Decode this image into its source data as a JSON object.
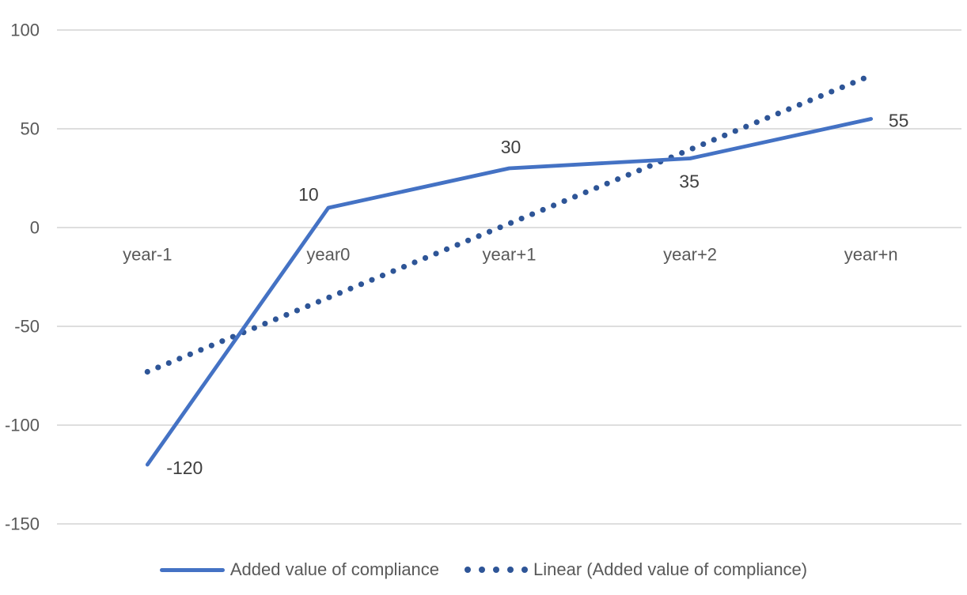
{
  "chart_data": {
    "type": "line",
    "title": "",
    "xlabel": "",
    "ylabel": "",
    "categories": [
      "year-1",
      "year0",
      "year+1",
      "year+2",
      "year+n"
    ],
    "series": [
      {
        "name": "Added value of compliance",
        "values": [
          -120,
          10,
          30,
          35,
          55
        ],
        "data_labels": [
          "-120",
          "10",
          "30",
          "35",
          "55"
        ],
        "color": "#4472C4",
        "style": "solid"
      }
    ],
    "trendline": {
      "name": "Linear (Added value of compliance)",
      "type": "linear",
      "start_value": -73,
      "end_value": 77,
      "color": "#2E5597",
      "style": "round-dot"
    },
    "y_axis": {
      "ticks": [
        100,
        50,
        0,
        -50,
        -100,
        -150
      ],
      "min": -150,
      "max": 100
    },
    "x_axis": {
      "label_position": "below-zero-line"
    },
    "grid": true,
    "legend_position": "bottom"
  },
  "legend": {
    "items": [
      {
        "label": "Added value of compliance",
        "marker": "solid-line"
      },
      {
        "label": "Linear (Added value of compliance)",
        "marker": "dotted-line"
      }
    ]
  },
  "colors": {
    "series": "#4472C4",
    "trendline": "#2E5597",
    "gridline": "#D9D9D9",
    "axis_text": "#595959",
    "data_label_text": "#404040",
    "legend_text": "#595959",
    "background": "#FFFFFF"
  }
}
